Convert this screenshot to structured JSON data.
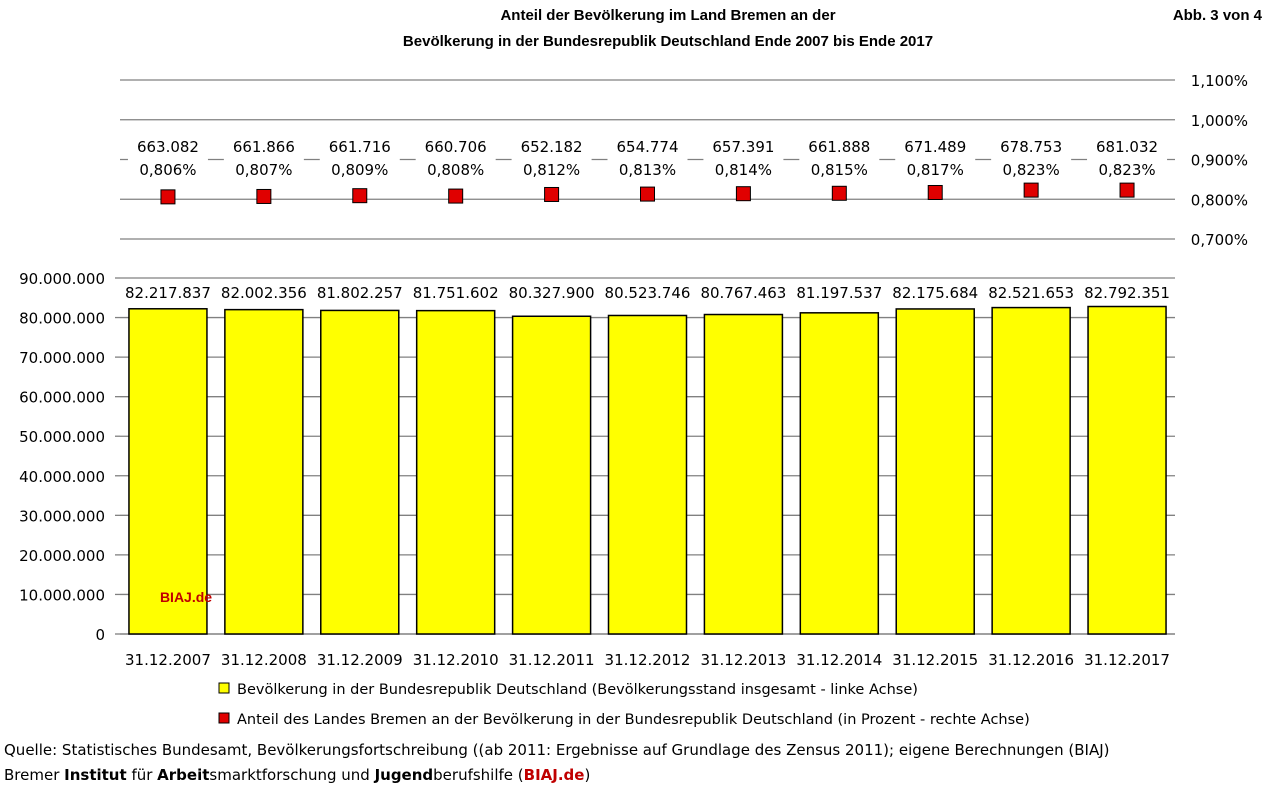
{
  "chart_data": {
    "type": "bar",
    "title_line1": "Anteil der Bevölkerung im Land Bremen an der",
    "title_line2": "Bevölkerung in der Bundesrepublik Deutschland Ende 2007 bis Ende 2017",
    "figure_label": "Abb. 3 von 4",
    "watermark": "BIAJ.de",
    "categories": [
      "31.12.2007",
      "31.12.2008",
      "31.12.2009",
      "31.12.2010",
      "31.12.2011",
      "31.12.2012",
      "31.12.2013",
      "31.12.2014",
      "31.12.2015",
      "31.12.2016",
      "31.12.2017"
    ],
    "series": [
      {
        "name": "Bevölkerung in der Bundesrepublik Deutschland (Bevölkerungsstand insgesamt - linke Achse)",
        "axis": "left",
        "type": "bar",
        "color": "#ffff00",
        "values": [
          82217837,
          82002356,
          81802257,
          81751602,
          80327900,
          80523746,
          80767463,
          81197537,
          82175684,
          82521653,
          82792351
        ],
        "labels": [
          "82.217.837",
          "82.002.356",
          "81.802.257",
          "81.751.602",
          "80.327.900",
          "80.523.746",
          "80.767.463",
          "81.197.537",
          "82.175.684",
          "82.521.653",
          "82.792.351"
        ]
      },
      {
        "name": "Anteil des Landes Bremen an der Bevölkerung in der Bundesrepublik Deutschland (in Prozent - rechte Achse)",
        "axis": "right",
        "type": "scatter",
        "color": "#ff0000",
        "values": [
          0.806,
          0.807,
          0.809,
          0.808,
          0.812,
          0.813,
          0.814,
          0.815,
          0.817,
          0.823,
          0.823
        ],
        "labels": [
          "0,806%",
          "0,807%",
          "0,809%",
          "0,808%",
          "0,812%",
          "0,813%",
          "0,814%",
          "0,815%",
          "0,817%",
          "0,823%",
          "0,823%"
        ]
      }
    ],
    "bremen_population_labels": [
      "663.082",
      "661.866",
      "661.716",
      "660.706",
      "652.182",
      "654.774",
      "657.391",
      "661.888",
      "671.489",
      "678.753",
      "681.032"
    ],
    "left_axis": {
      "ylim": [
        0,
        90000000
      ],
      "ticks": [
        0,
        10000000,
        20000000,
        30000000,
        40000000,
        50000000,
        60000000,
        70000000,
        80000000,
        90000000
      ],
      "tick_labels": [
        "0",
        "10.000.000",
        "20.000.000",
        "30.000.000",
        "40.000.000",
        "50.000.000",
        "60.000.000",
        "70.000.000",
        "80.000.000",
        "90.000.000"
      ]
    },
    "right_axis": {
      "ylim": [
        0.7,
        1.1
      ],
      "ticks": [
        0.7,
        0.8,
        0.9,
        1.0,
        1.1
      ],
      "tick_labels": [
        "0,700%",
        "0,800%",
        "0,900%",
        "1,000%",
        "1,100%"
      ]
    },
    "grid": true,
    "legend_placement": "bottom"
  },
  "footer": {
    "source": "Quelle: Statistisches Bundesamt, Bevölkerungsfortschreibung ((ab 2011: Ergebnisse auf Grundlage des Zensus 2011); eigene Berechnungen (BIAJ)",
    "org_1": "Bremer ",
    "org_2": "Institut",
    "org_3": " für ",
    "org_4": "Arbeit",
    "org_5": "smarktforschung und ",
    "org_6": "Jugend",
    "org_7": "berufshilfe (",
    "org_8": "BIAJ.de",
    "org_9": ")"
  }
}
